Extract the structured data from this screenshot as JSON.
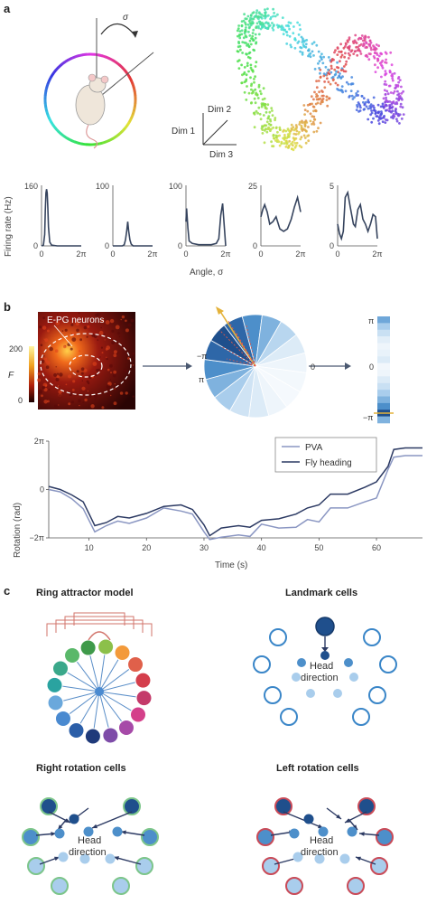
{
  "panel_a": {
    "label": "a",
    "sigma": "σ",
    "dims": [
      "Dim 1",
      "Dim 2",
      "Dim 3"
    ],
    "ylabel": "Firing rate (Hz)",
    "xlabel": "Angle, σ",
    "x_zero": "0",
    "x_end": "2π"
  },
  "panel_b": {
    "label": "b",
    "neurons_label": "E-PG neurons",
    "f_label": "F",
    "f_ticks": [
      "200",
      "0"
    ],
    "wheel_labels": [
      "−π",
      "π",
      "0"
    ],
    "bar_ticks": [
      "π",
      "0",
      "−π"
    ],
    "legend": [
      "PVA",
      "Fly heading"
    ],
    "ylabel": "Rotation (rad)",
    "xlabel": "Time (s)"
  },
  "panel_c": {
    "label": "c",
    "titles": [
      "Ring attractor model",
      "Landmark cells",
      "Right rotation cells",
      "Left rotation cells"
    ],
    "head_direction": [
      "Head",
      "direction"
    ]
  },
  "chart_data": [
    {
      "type": "line",
      "title": "",
      "xlabel": "Angle, σ",
      "ylabel": "Firing rate (Hz)",
      "xlim": [
        0,
        6.2832
      ],
      "plots": [
        {
          "ylim": [
            0,
            160
          ],
          "yticks": [
            "160",
            "0"
          ],
          "x": [
            0,
            0.3,
            0.5,
            0.6,
            0.7,
            0.8,
            0.9,
            1.0,
            1.1,
            1.3,
            1.6,
            2.5,
            6.28
          ],
          "y": [
            0,
            2,
            30,
            95,
            140,
            150,
            140,
            100,
            50,
            10,
            2,
            0,
            0
          ]
        },
        {
          "ylim": [
            0,
            100
          ],
          "yticks": [
            "100",
            "0"
          ],
          "x": [
            0,
            1.5,
            1.8,
            2.0,
            2.2,
            2.35,
            2.5,
            2.7,
            2.9,
            3.2,
            6.28
          ],
          "y": [
            0,
            0,
            2,
            10,
            25,
            40,
            25,
            10,
            3,
            0,
            0
          ]
        },
        {
          "ylim": [
            0,
            100
          ],
          "yticks": [
            "100",
            "0"
          ],
          "x": [
            0,
            0.1,
            0.3,
            0.5,
            1,
            2,
            3,
            4,
            4.8,
            5.2,
            5.5,
            5.8,
            6.28
          ],
          "y": [
            40,
            62,
            30,
            8,
            4,
            2,
            2,
            2,
            4,
            12,
            50,
            70,
            0
          ]
        },
        {
          "ylim": [
            0,
            25
          ],
          "yticks": [
            "25",
            "0"
          ],
          "x": [
            0,
            0.3,
            0.6,
            1.0,
            1.4,
            1.9,
            2.4,
            3.0,
            3.6,
            4.2,
            4.8,
            5.3,
            5.8,
            6.28
          ],
          "y": [
            12,
            15,
            17,
            14,
            9,
            10,
            12,
            7,
            6,
            7,
            11,
            16,
            20,
            14
          ]
        },
        {
          "ylim": [
            0,
            5
          ],
          "yticks": [
            "5",
            "0"
          ],
          "x": [
            0,
            0.3,
            0.6,
            0.9,
            1.2,
            1.6,
            2.0,
            2.5,
            2.8,
            3.2,
            3.6,
            4.0,
            4.4,
            4.8,
            5.2,
            5.6,
            6.0,
            6.28
          ],
          "y": [
            1.8,
            1.0,
            0.6,
            1.2,
            4.0,
            4.4,
            3.2,
            1.8,
            1.6,
            3.0,
            3.4,
            2.2,
            1.8,
            1.2,
            1.8,
            2.6,
            2.4,
            0.6
          ]
        }
      ]
    },
    {
      "type": "line",
      "title": "",
      "xlabel": "Time (s)",
      "ylabel": "Rotation (rad)",
      "xlim": [
        3,
        68
      ],
      "ylim": [
        -6.2832,
        6.2832
      ],
      "yticks": [
        "2π",
        "0",
        "−2π"
      ],
      "xticks": [
        10,
        20,
        30,
        40,
        50,
        60
      ],
      "series": [
        {
          "name": "PVA",
          "x": [
            3,
            5,
            7,
            9,
            11,
            13,
            15,
            17,
            20,
            23,
            26,
            28,
            30,
            31,
            33,
            36,
            38,
            40,
            43,
            46,
            48,
            50,
            52,
            55,
            58,
            60,
            62,
            63,
            65,
            68
          ],
          "y": [
            0,
            -0.3,
            -1.2,
            -2.5,
            -5.5,
            -4.7,
            -4.1,
            -4.4,
            -3.7,
            -2.4,
            -2.8,
            -3.2,
            -5.5,
            -6.5,
            -6.2,
            -5.9,
            -6.1,
            -4.5,
            -5.0,
            -4.9,
            -3.9,
            -4.2,
            -2.4,
            -2.4,
            -1.6,
            -1.1,
            2.6,
            4.2,
            4.4,
            4.4
          ]
        },
        {
          "name": "Fly heading",
          "x": [
            3,
            5,
            7,
            9,
            11,
            13,
            15,
            17,
            20,
            23,
            26,
            28,
            30,
            31,
            33,
            36,
            38,
            40,
            43,
            46,
            48,
            50,
            52,
            55,
            58,
            60,
            62,
            63,
            65,
            68
          ],
          "y": [
            0.4,
            0,
            -0.7,
            -1.6,
            -4.7,
            -4.3,
            -3.5,
            -3.7,
            -3.1,
            -2.2,
            -2.0,
            -2.6,
            -4.6,
            -6.0,
            -5.0,
            -4.7,
            -4.9,
            -4.0,
            -3.8,
            -3.2,
            -2.4,
            -2.0,
            -0.6,
            -0.6,
            0.3,
            1.0,
            3.0,
            5.2,
            5.4,
            5.4
          ]
        }
      ]
    }
  ],
  "colors": {
    "trace": "#36445e",
    "pva": "#8a96c2",
    "heading": "#2c3a63",
    "connection": "#d2736a",
    "hd_dark": "#1f4f8c",
    "hd_mid": "#4d8fca",
    "hd_light": "#a9cdec",
    "right_ring": "#7cc58a",
    "left_ring": "#c94a57",
    "pva_marker": "#e4b23a"
  }
}
